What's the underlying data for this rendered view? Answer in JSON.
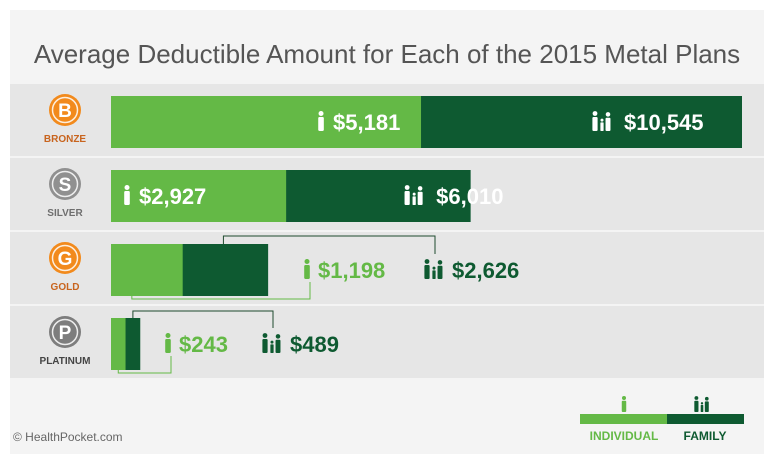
{
  "chart_data": {
    "type": "bar",
    "title": "Average Deductible Amount for Each of the 2015 Metal Plans",
    "categories": [
      "BRONZE",
      "SILVER",
      "GOLD",
      "PLATINUM"
    ],
    "badge_letters": [
      "B",
      "S",
      "G",
      "P"
    ],
    "series": [
      {
        "name": "INDIVIDUAL",
        "values": [
          5181,
          2927,
          1198,
          243
        ],
        "labels": [
          "$5,181",
          "$2,927",
          "$1,198",
          "$243"
        ],
        "color": "#64b946"
      },
      {
        "name": "FAMILY",
        "values": [
          10545,
          6010,
          2626,
          489
        ],
        "labels": [
          "$10,545",
          "$6,010",
          "$2,626",
          "$489"
        ],
        "color": "#0e5a31"
      }
    ],
    "badge_colors": [
      "#f28a1c",
      "#909090",
      "#f28a1c",
      "#7d7d7d"
    ],
    "label_colors": [
      "#c8641e",
      "#6e6e6e",
      "#c8641e",
      "#444444"
    ],
    "xlim": [
      0,
      10545
    ],
    "grid": false,
    "legend_position": "bottom-right"
  },
  "footer": {
    "credit": "© HealthPocket.com"
  }
}
